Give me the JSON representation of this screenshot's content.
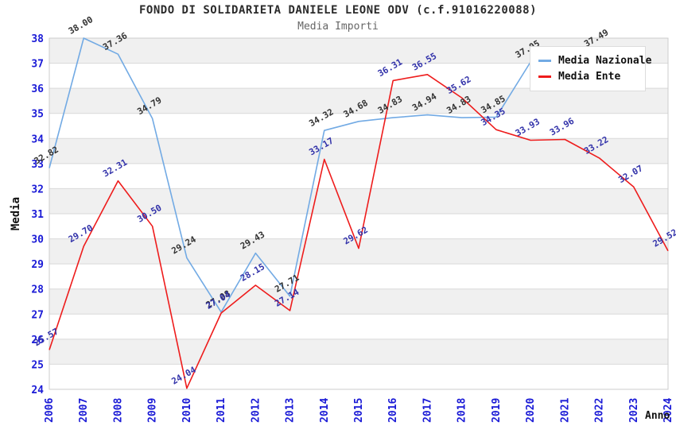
{
  "title": "FONDO DI SOLIDARIETA DANIELE LEONE ODV (c.f.91016220088)",
  "subtitle": "Media Importi",
  "legend": {
    "items": [
      {
        "label": "Media Nazionale",
        "color": "#72aae4"
      },
      {
        "label": "Media Ente",
        "color": "#ee1c1c"
      }
    ]
  },
  "chart_data": {
    "type": "line",
    "title": "FONDO DI SOLIDARIETA DANIELE LEONE ODV (c.f.91016220088)",
    "subtitle": "Media Importi",
    "xlabel": "Anno",
    "ylabel": "Media",
    "ylim": [
      24,
      38
    ],
    "y_tick_step": 1,
    "grid": true,
    "banded_background": true,
    "legend_position": "top-right",
    "x": [
      2006,
      2007,
      2008,
      2009,
      2010,
      2011,
      2012,
      2013,
      2014,
      2015,
      2016,
      2017,
      2018,
      2019,
      2020,
      2021,
      2022,
      2023,
      2024
    ],
    "series": [
      {
        "name": "Media Nazionale",
        "color": "#72aae4",
        "label_color": "#333333",
        "values": [
          32.82,
          38.0,
          37.36,
          34.79,
          29.24,
          27.08,
          29.43,
          27.71,
          34.32,
          34.68,
          34.83,
          34.94,
          34.83,
          34.85,
          37.05,
          null,
          37.49,
          null,
          null
        ]
      },
      {
        "name": "Media Ente",
        "color": "#ee1c1c",
        "label_color": "#3333aa",
        "values": [
          25.57,
          29.7,
          32.31,
          30.5,
          24.04,
          27.04,
          28.15,
          27.14,
          33.17,
          29.62,
          36.31,
          36.55,
          35.62,
          34.35,
          33.93,
          33.96,
          33.22,
          32.07,
          29.52
        ]
      }
    ],
    "colors": {
      "tick_label": "#1a1ad6",
      "grid_line": "#d9d9d9",
      "band_fill": "#f0f0f0",
      "plot_border": "#cccccc",
      "axis_title": "#111111"
    }
  }
}
